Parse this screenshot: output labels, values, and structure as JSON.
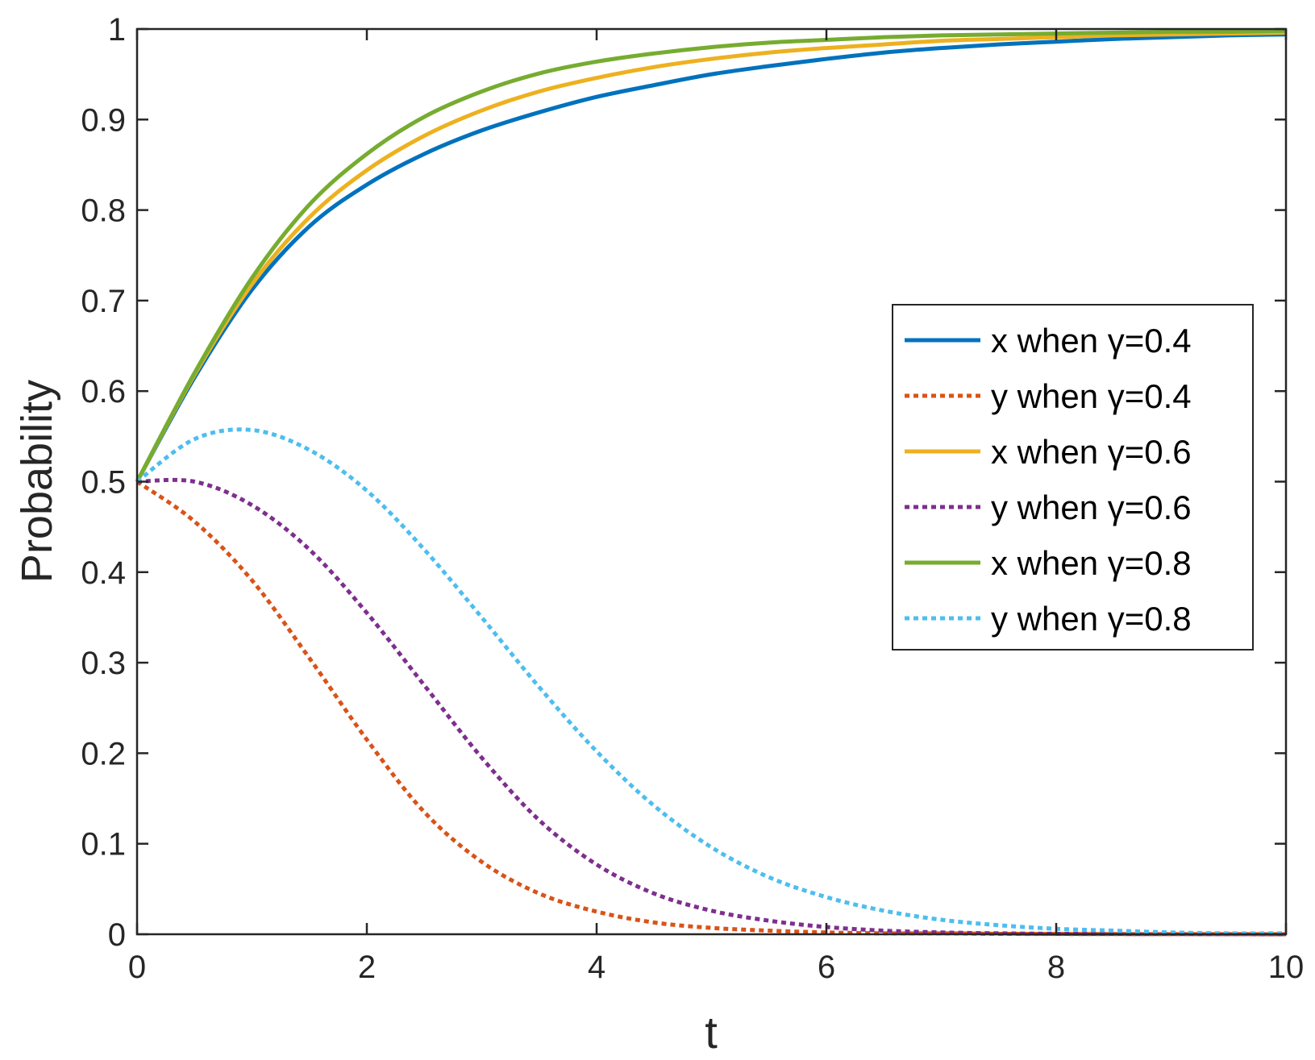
{
  "chart_data": {
    "type": "line",
    "title": "",
    "xlabel": "t",
    "ylabel": "Probability",
    "xlim": [
      0,
      10
    ],
    "ylim": [
      0,
      1
    ],
    "xticks": [
      0,
      2,
      4,
      6,
      8,
      10
    ],
    "xtick_labels": [
      "0",
      "2",
      "4",
      "6",
      "8",
      "10"
    ],
    "yticks": [
      0,
      0.1,
      0.2,
      0.3,
      0.4,
      0.5,
      0.6,
      0.7,
      0.8,
      0.9,
      1
    ],
    "ytick_labels": [
      "0",
      "0.1",
      "0.2",
      "0.3",
      "0.4",
      "0.5",
      "0.6",
      "0.7",
      "0.8",
      "0.9",
      "1"
    ],
    "grid": false,
    "legend_position": "right",
    "x": [
      0,
      0.5,
      1,
      1.5,
      2,
      2.5,
      3,
      3.5,
      4,
      4.5,
      5,
      5.5,
      6,
      6.5,
      7,
      7.5,
      8,
      8.5,
      9,
      9.5,
      10
    ],
    "series": [
      {
        "name": "x when γ=0.4",
        "color": "#0072BD",
        "style": "solid",
        "values": [
          0.5,
          0.615,
          0.712,
          0.782,
          0.828,
          0.862,
          0.888,
          0.908,
          0.925,
          0.938,
          0.95,
          0.959,
          0.967,
          0.974,
          0.979,
          0.983,
          0.986,
          0.989,
          0.991,
          0.993,
          0.994
        ]
      },
      {
        "name": "y when γ=0.4",
        "color": "#D95319",
        "style": "dotted",
        "values": [
          0.5,
          0.456,
          0.391,
          0.305,
          0.215,
          0.135,
          0.08,
          0.045,
          0.025,
          0.013,
          0.007,
          0.004,
          0.002,
          0.001,
          0.001,
          0.0005,
          0.0003,
          0.0002,
          0.0001,
          0.0001,
          0.0
        ]
      },
      {
        "name": "x when γ=0.6",
        "color": "#EDB120",
        "style": "solid",
        "values": [
          0.5,
          0.618,
          0.718,
          0.792,
          0.844,
          0.882,
          0.91,
          0.931,
          0.946,
          0.958,
          0.967,
          0.974,
          0.979,
          0.983,
          0.987,
          0.989,
          0.991,
          0.993,
          0.994,
          0.995,
          0.996
        ]
      },
      {
        "name": "y when γ=0.6",
        "color": "#7E2F8E",
        "style": "dotted",
        "values": [
          0.5,
          0.5,
          0.474,
          0.425,
          0.355,
          0.275,
          0.195,
          0.126,
          0.077,
          0.045,
          0.026,
          0.015,
          0.008,
          0.004,
          0.002,
          0.001,
          0.0005,
          0.0003,
          0.0002,
          0.0001,
          0.0
        ]
      },
      {
        "name": "x when γ=0.8",
        "color": "#77AC30",
        "style": "solid",
        "values": [
          0.5,
          0.62,
          0.725,
          0.806,
          0.862,
          0.903,
          0.931,
          0.951,
          0.964,
          0.973,
          0.98,
          0.985,
          0.988,
          0.991,
          0.993,
          0.994,
          0.995,
          0.996,
          0.997,
          0.997,
          0.998
        ]
      },
      {
        "name": "y when γ=0.8",
        "color": "#4DBEEE",
        "style": "dotted",
        "values": [
          0.5,
          0.547,
          0.557,
          0.535,
          0.49,
          0.425,
          0.35,
          0.273,
          0.202,
          0.142,
          0.096,
          0.063,
          0.041,
          0.026,
          0.016,
          0.01,
          0.006,
          0.004,
          0.002,
          0.001,
          0.001
        ]
      }
    ]
  }
}
